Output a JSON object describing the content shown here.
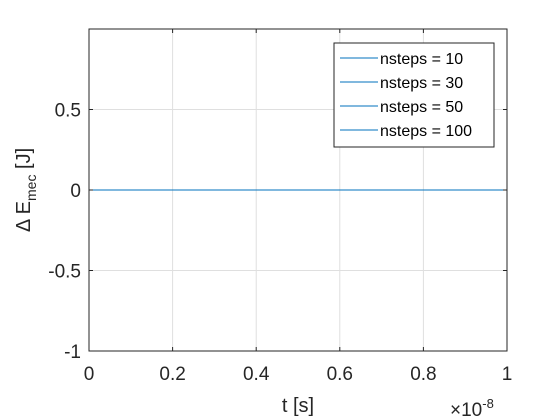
{
  "chart_data": {
    "type": "line",
    "title": "",
    "xlabel": "t [s]",
    "ylabel_prefix": "Δ E",
    "ylabel_sub": "mec",
    "ylabel_unit": " [J]",
    "x_exponent_text": "×10",
    "x_exponent_power": "-8",
    "xlim": [
      0,
      1e-08
    ],
    "ylim": [
      -1,
      1
    ],
    "xticks": [
      0,
      0.2,
      0.4,
      0.6,
      0.8,
      1
    ],
    "xtick_labels": [
      "0",
      "0.2",
      "0.4",
      "0.6",
      "0.8",
      "1"
    ],
    "yticks": [
      -1,
      -0.5,
      0,
      0.5
    ],
    "ytick_labels": [
      "-1",
      "-0.5",
      "0",
      "0.5"
    ],
    "grid": true,
    "legend_position": "top-right",
    "series": [
      {
        "name": "nsteps = 10",
        "color": "#0072BD",
        "x": [
          0,
          1e-08
        ],
        "y": [
          0,
          0
        ]
      },
      {
        "name": "nsteps = 30",
        "color": "#0072BD",
        "x": [
          0,
          1e-08
        ],
        "y": [
          0,
          0
        ]
      },
      {
        "name": "nsteps = 50",
        "color": "#0072BD",
        "x": [
          0,
          1e-08
        ],
        "y": [
          0,
          0
        ]
      },
      {
        "name": "nsteps = 100",
        "color": "#0072BD",
        "x": [
          0,
          1e-08
        ],
        "y": [
          0,
          0
        ]
      }
    ]
  }
}
